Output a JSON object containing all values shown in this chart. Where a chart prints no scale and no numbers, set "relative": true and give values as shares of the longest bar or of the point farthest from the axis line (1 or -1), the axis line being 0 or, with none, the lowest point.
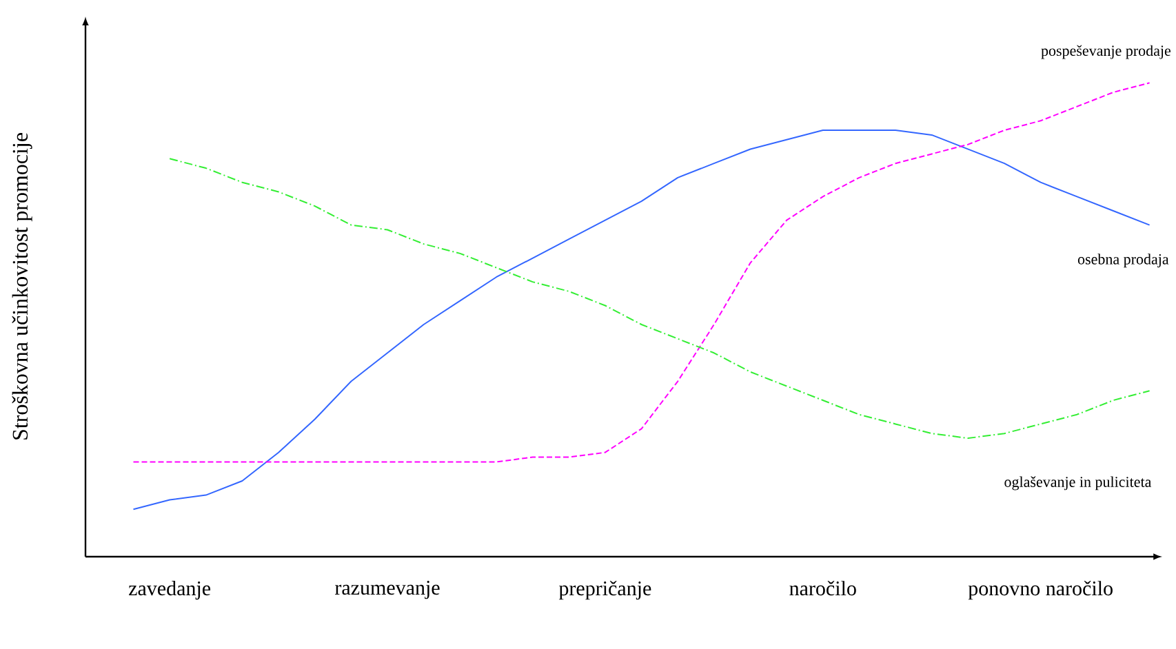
{
  "chart_data": {
    "type": "line",
    "relative": true,
    "ylabel": "Stroškovna učinkovitost promocije",
    "marker": "none",
    "categories": [
      null,
      "zavedanje",
      null,
      null,
      null,
      null,
      null,
      "razumevanje",
      null,
      null,
      null,
      null,
      null,
      "prepričanje",
      null,
      null,
      null,
      null,
      null,
      "naročilo",
      null,
      null,
      null,
      null,
      null,
      "ponovno naročilo",
      null,
      null,
      null
    ],
    "series": [
      {
        "name": "osebna prodaja",
        "color": "#3366ff",
        "line_style": "solid",
        "values": [
          0.1,
          0.12,
          0.13,
          0.16,
          0.22,
          0.29,
          0.37,
          0.43,
          0.49,
          0.54,
          0.59,
          0.63,
          0.67,
          0.71,
          0.75,
          0.8,
          0.83,
          0.86,
          0.88,
          0.9,
          0.9,
          0.9,
          0.89,
          0.86,
          0.83,
          0.79,
          0.76,
          0.73,
          0.7
        ]
      },
      {
        "name": "pospeševanje prodaje",
        "color": "#ff00ff",
        "line_style": "dashed",
        "values": [
          0.2,
          0.2,
          0.2,
          0.2,
          0.2,
          0.2,
          0.2,
          0.2,
          0.2,
          0.2,
          0.2,
          0.21,
          0.21,
          0.22,
          0.27,
          0.37,
          0.49,
          0.62,
          0.71,
          0.76,
          0.8,
          0.83,
          0.85,
          0.87,
          0.9,
          0.92,
          0.95,
          0.98,
          1.0
        ]
      },
      {
        "name": "oglaševanje in puliciteta",
        "color": "#33ee33",
        "line_style": "dotted",
        "values": [
          null,
          0.84,
          0.82,
          0.79,
          0.77,
          0.74,
          0.7,
          0.69,
          0.66,
          0.64,
          0.61,
          0.58,
          0.56,
          0.53,
          0.49,
          0.46,
          0.43,
          0.39,
          0.36,
          0.33,
          0.3,
          0.28,
          0.26,
          0.25,
          0.26,
          0.28,
          0.3,
          0.33,
          0.35
        ]
      }
    ]
  }
}
